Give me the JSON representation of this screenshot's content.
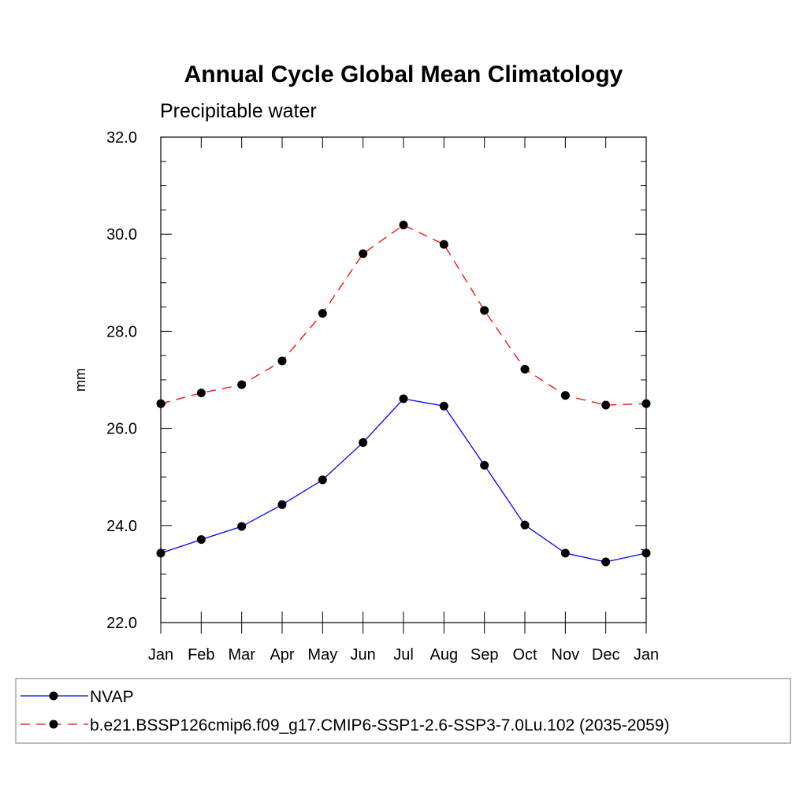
{
  "chart_data": {
    "type": "line",
    "title": "Annual Cycle Global Mean Climatology",
    "subtitle": "Precipitable water",
    "xlabel": "",
    "ylabel": "mm",
    "categories": [
      "Jan",
      "Feb",
      "Mar",
      "Apr",
      "May",
      "Jun",
      "Jul",
      "Aug",
      "Sep",
      "Oct",
      "Nov",
      "Dec",
      "Jan"
    ],
    "ylim": [
      22.0,
      32.0
    ],
    "yticks": [
      "22.0",
      "24.0",
      "26.0",
      "28.0",
      "30.0",
      "32.0"
    ],
    "grid": false,
    "legend_position": "bottom",
    "series": [
      {
        "name": "NVAP",
        "color": "#0000ff",
        "line_style": "solid",
        "marker": "filled-circle",
        "values": [
          23.43,
          23.71,
          23.98,
          24.43,
          24.94,
          25.71,
          26.61,
          26.46,
          25.24,
          24.01,
          23.43,
          23.25,
          23.43
        ]
      },
      {
        "name": "b.e21.BSSP126cmip6.f09_g17.CMIP6-SSP1-2.6-SSP3-7.0Lu.102 (2035-2059)",
        "color": "#ff0000",
        "line_style": "dashed",
        "marker": "filled-circle",
        "values": [
          26.51,
          26.73,
          26.9,
          27.39,
          28.37,
          29.6,
          30.19,
          29.79,
          28.43,
          27.22,
          26.68,
          26.48,
          26.51
        ]
      }
    ]
  }
}
